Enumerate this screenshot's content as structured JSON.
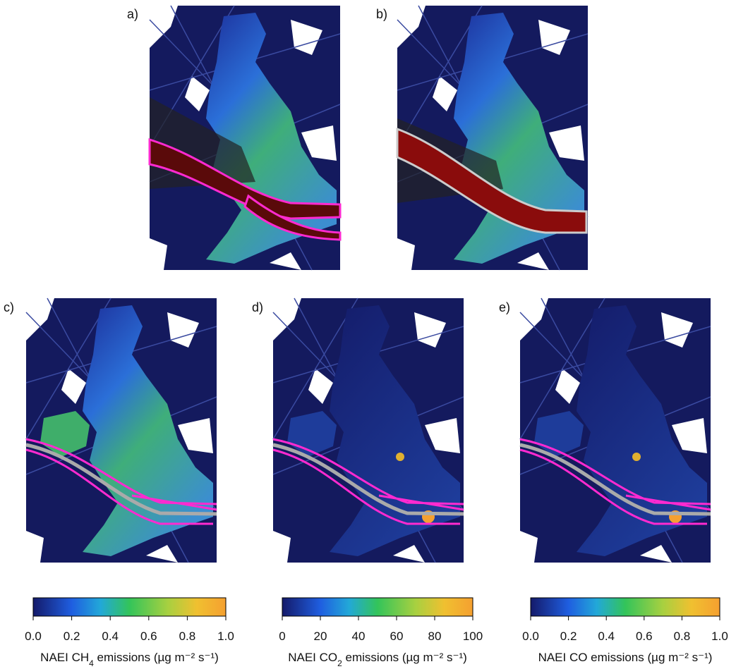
{
  "panels": [
    {
      "label": "a)"
    },
    {
      "label": "b)"
    },
    {
      "label": "c)"
    },
    {
      "label": "d)"
    },
    {
      "label": "e)"
    }
  ],
  "colorbars": [
    {
      "title_prefix": "NAEI CH",
      "title_sub": "4",
      "title_suffix": " emissions (µg m⁻² s⁻¹)",
      "lim": [
        0,
        1
      ],
      "ticks": [
        {
          "value": 0,
          "label": "0.0"
        },
        {
          "value": 0.2,
          "label": "0.2"
        },
        {
          "value": 0.4,
          "label": "0.4"
        },
        {
          "value": 0.6,
          "label": "0.6"
        },
        {
          "value": 0.8,
          "label": "0.8"
        },
        {
          "value": 1,
          "label": "1.0"
        }
      ]
    },
    {
      "title_prefix": "NAEI CO",
      "title_sub": "2",
      "title_suffix": " emissions (µg m⁻² s⁻¹)",
      "lim": [
        0,
        100
      ],
      "ticks": [
        0,
        20,
        40,
        60,
        80,
        100
      ]
    },
    {
      "title_prefix": "NAEI CO emissions (µg m⁻² s⁻¹)",
      "lim": [
        0,
        1
      ],
      "ticks": [
        {
          "value": 0,
          "label": "0.0"
        },
        {
          "value": 0.2,
          "label": "0.2"
        },
        {
          "value": 0.4,
          "label": "0.4"
        },
        {
          "value": 0.6,
          "label": "0.6"
        },
        {
          "value": 0.8,
          "label": "0.8"
        },
        {
          "value": 1,
          "label": "1.0"
        }
      ]
    }
  ]
}
